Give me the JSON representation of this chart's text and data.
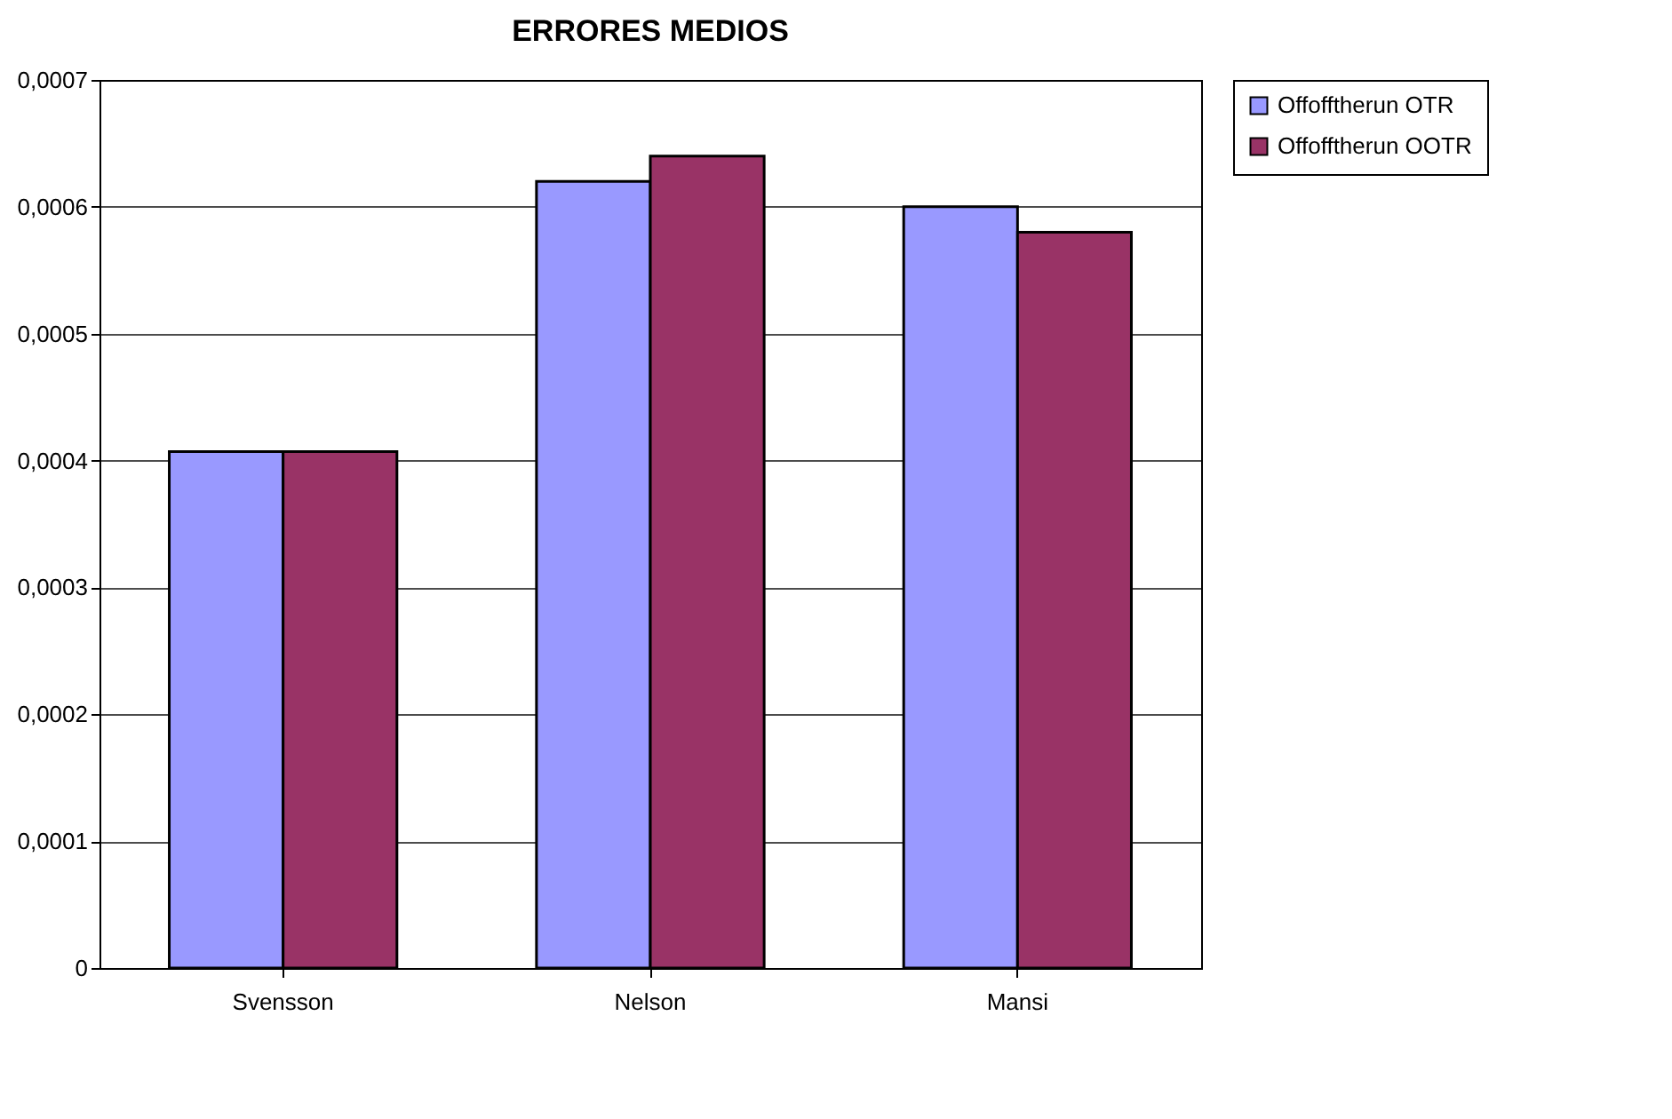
{
  "chart_data": {
    "type": "bar",
    "title": "ERRORES MEDIOS",
    "categories": [
      "Svensson",
      "Nelson",
      "Mansi"
    ],
    "series": [
      {
        "name": "Offofftherun OTR",
        "color": "#9999ff",
        "values": [
          0.000407,
          0.00062,
          0.0006
        ]
      },
      {
        "name": "Offofftherun OOTR",
        "color": "#993366",
        "values": [
          0.000407,
          0.00064,
          0.00058
        ]
      }
    ],
    "ylim": [
      0,
      0.0007
    ],
    "yticks": [
      {
        "value": 0,
        "label": "0"
      },
      {
        "value": 0.0001,
        "label": "0,0001"
      },
      {
        "value": 0.0002,
        "label": "0,0002"
      },
      {
        "value": 0.0003,
        "label": "0,0003"
      },
      {
        "value": 0.0004,
        "label": "0,0004"
      },
      {
        "value": 0.0005,
        "label": "0,0005"
      },
      {
        "value": 0.0006,
        "label": "0,0006"
      },
      {
        "value": 0.0007,
        "label": "0,0007"
      }
    ],
    "grid": "y",
    "legend": "right"
  }
}
